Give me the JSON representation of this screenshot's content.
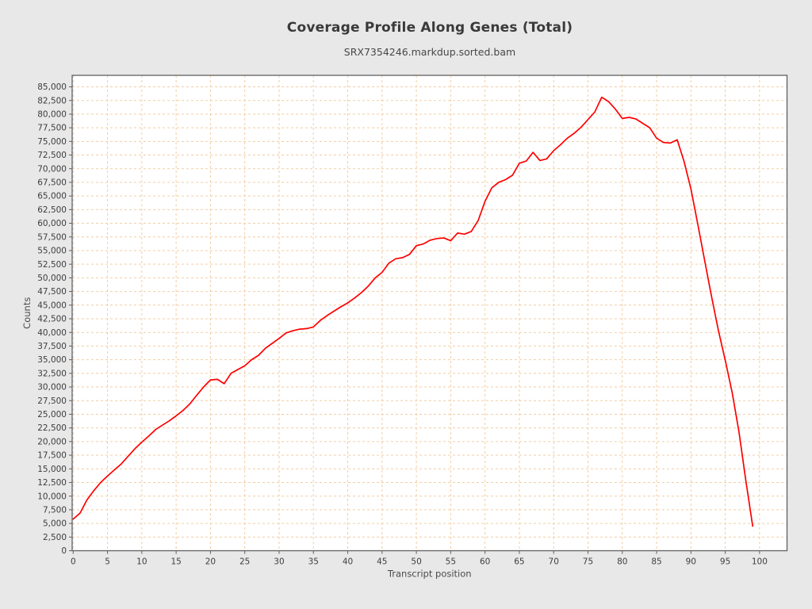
{
  "chart_data": {
    "type": "line",
    "title": "Coverage Profile Along Genes (Total)",
    "subtitle": "SRX7354246.markdup.sorted.bam",
    "xlabel": "Transcript position",
    "ylabel": "Counts",
    "x_tick_min": 0,
    "x_tick_max": 100,
    "x_tick_step": 5,
    "y_tick_min": 0,
    "y_tick_max": 85000,
    "y_tick_step": 2500,
    "xlim": [
      -0.15,
      104.0
    ],
    "ylim": [
      0,
      87100
    ],
    "grid": "dashed",
    "legend_position": "none",
    "series": [
      {
        "name": "SRX7354246.markdup.sorted.bam",
        "color": "#fe0000",
        "x": [
          0,
          1,
          2,
          3,
          4,
          5,
          6,
          7,
          8,
          9,
          10,
          11,
          12,
          13,
          14,
          15,
          16,
          17,
          18,
          19,
          20,
          21,
          22,
          23,
          24,
          25,
          26,
          27,
          28,
          29,
          30,
          31,
          32,
          33,
          34,
          35,
          36,
          37,
          38,
          39,
          40,
          41,
          42,
          43,
          44,
          45,
          46,
          47,
          48,
          49,
          50,
          51,
          52,
          53,
          54,
          55,
          56,
          57,
          58,
          59,
          60,
          61,
          62,
          63,
          64,
          65,
          66,
          67,
          68,
          69,
          70,
          71,
          72,
          73,
          74,
          75,
          76,
          77,
          78,
          79,
          80,
          81,
          82,
          83,
          84,
          85,
          86,
          87,
          88,
          89,
          90,
          91,
          92,
          93,
          94,
          95,
          96,
          97,
          98,
          99
        ],
        "values": [
          5800,
          6900,
          9300,
          11000,
          12500,
          13700,
          14800,
          15900,
          17300,
          18700,
          19900,
          21000,
          22200,
          23000,
          23800,
          24700,
          25700,
          26900,
          28500,
          30000,
          31300,
          31400,
          30600,
          32500,
          33200,
          33900,
          35000,
          35800,
          37100,
          38000,
          38900,
          39900,
          40300,
          40600,
          40700,
          41000,
          42200,
          43100,
          43900,
          44700,
          45400,
          46300,
          47300,
          48500,
          50000,
          51000,
          52700,
          53500,
          53700,
          54300,
          55900,
          56200,
          56900,
          57200,
          57300,
          56800,
          58200,
          58000,
          58500,
          60500,
          64000,
          66500,
          67500,
          68000,
          68800,
          71000,
          71400,
          73000,
          71500,
          71800,
          73300,
          74400,
          75600,
          76500,
          77600,
          79000,
          80400,
          83100,
          82300,
          80900,
          79200,
          79400,
          79100,
          78300,
          77500,
          75600,
          74800,
          74700,
          75300,
          71300,
          66300,
          59800,
          53200,
          46600,
          40400,
          34900,
          29000,
          21800,
          12800,
          4500
        ]
      }
    ]
  },
  "colors": {
    "page_background": "#e8e8e8",
    "plot_background": "#ffffff",
    "grid": "#f3cda4",
    "frame": "#606060",
    "line": "#fe0000",
    "tick_text": "#3d3d3d"
  }
}
